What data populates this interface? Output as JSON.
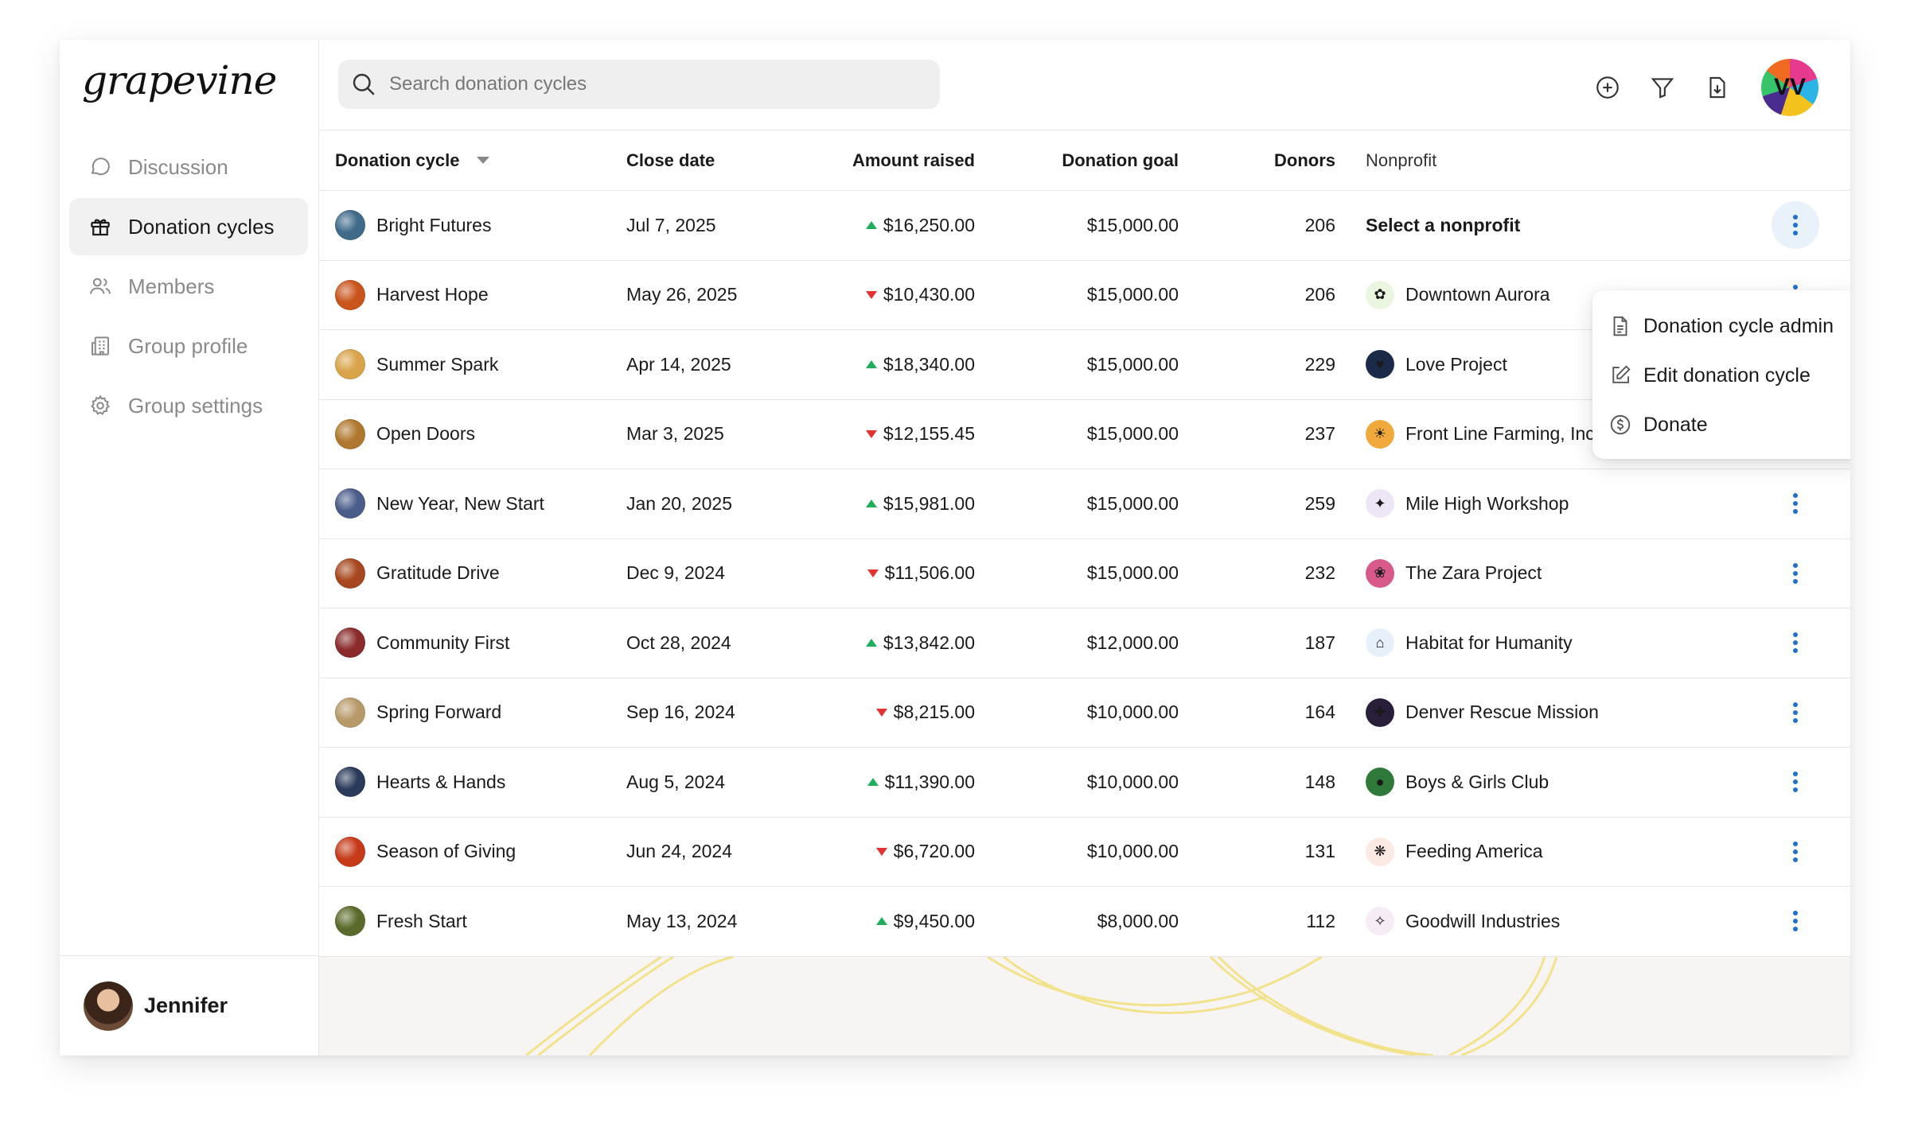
{
  "app": {
    "logo": "grapevine"
  },
  "sidebar": {
    "items": [
      {
        "label": "Discussion",
        "icon": "chat-bubble-icon",
        "active": false
      },
      {
        "label": "Donation cycles",
        "icon": "gift-icon",
        "active": true
      },
      {
        "label": "Members",
        "icon": "users-icon",
        "active": false
      },
      {
        "label": "Group profile",
        "icon": "building-icon",
        "active": false
      },
      {
        "label": "Group settings",
        "icon": "gear-icon",
        "active": false
      }
    ],
    "user": {
      "name": "Jennifer"
    }
  },
  "search": {
    "placeholder": "Search donation cycles"
  },
  "toolbar": {
    "icons": [
      "add-circle-icon",
      "filter-icon",
      "export-icon"
    ]
  },
  "table": {
    "headers": {
      "cycle": "Donation cycle",
      "close_date": "Close date",
      "amount": "Amount raised",
      "goal": "Donation goal",
      "donors": "Donors",
      "nonprofit": "Nonprofit"
    },
    "rows": [
      {
        "name": "Bright Futures",
        "date": "Jul 7, 2025",
        "trend": "up",
        "amount": "$16,250.00",
        "goal": "$15,000.00",
        "donors": "206",
        "nonprofit": "Select a nonprofit",
        "np_select": true,
        "thumb": "#3f6a8a",
        "np_color": "#ffffff",
        "np_glyph": ""
      },
      {
        "name": "Harvest Hope",
        "date": "May 26, 2025",
        "trend": "down",
        "amount": "$10,430.00",
        "goal": "$15,000.00",
        "donors": "206",
        "nonprofit": "Downtown Aurora",
        "np_select": false,
        "thumb": "#c9541c",
        "np_color": "#eaf6e0",
        "np_glyph": "✿"
      },
      {
        "name": "Summer Spark",
        "date": "Apr 14, 2025",
        "trend": "up",
        "amount": "$18,340.00",
        "goal": "$15,000.00",
        "donors": "229",
        "nonprofit": "Love Project",
        "np_select": false,
        "thumb": "#d9a34a",
        "np_color": "#1c2a4a",
        "np_glyph": "♥"
      },
      {
        "name": "Open Doors",
        "date": "Mar 3, 2025",
        "trend": "down",
        "amount": "$12,155.45",
        "goal": "$15,000.00",
        "donors": "237",
        "nonprofit": "Front Line Farming, Inc.",
        "np_select": false,
        "thumb": "#b0782e",
        "np_color": "#f2a93b",
        "np_glyph": "☀"
      },
      {
        "name": "New Year, New Start",
        "date": "Jan 20, 2025",
        "trend": "up",
        "amount": "$15,981.00",
        "goal": "$15,000.00",
        "donors": "259",
        "nonprofit": "Mile High Workshop",
        "np_select": false,
        "thumb": "#4a5c8a",
        "np_color": "#ece6f7",
        "np_glyph": "✦"
      },
      {
        "name": "Gratitude Drive",
        "date": "Dec 9, 2024",
        "trend": "down",
        "amount": "$11,506.00",
        "goal": "$15,000.00",
        "donors": "232",
        "nonprofit": "The Zara Project",
        "np_select": false,
        "thumb": "#a7471f",
        "np_color": "#d75a8a",
        "np_glyph": "❀"
      },
      {
        "name": "Community First",
        "date": "Oct 28, 2024",
        "trend": "up",
        "amount": "$13,842.00",
        "goal": "$12,000.00",
        "donors": "187",
        "nonprofit": "Habitat for Humanity",
        "np_select": false,
        "thumb": "#8a2a2a",
        "np_color": "#e7f0fa",
        "np_glyph": "⌂"
      },
      {
        "name": "Spring Forward",
        "date": "Sep 16, 2024",
        "trend": "down",
        "amount": "$8,215.00",
        "goal": "$10,000.00",
        "donors": "164",
        "nonprofit": "Denver Rescue Mission",
        "np_select": false,
        "thumb": "#b89a6a",
        "np_color": "#2a1f3a",
        "np_glyph": "✚"
      },
      {
        "name": "Hearts & Hands",
        "date": "Aug 5, 2024",
        "trend": "up",
        "amount": "$11,390.00",
        "goal": "$10,000.00",
        "donors": "148",
        "nonprofit": "Boys & Girls Club",
        "np_select": false,
        "thumb": "#2a3a5a",
        "np_color": "#2f7a3a",
        "np_glyph": "●"
      },
      {
        "name": "Season of Giving",
        "date": "Jun 24, 2024",
        "trend": "down",
        "amount": "$6,720.00",
        "goal": "$10,000.00",
        "donors": "131",
        "nonprofit": "Feeding America",
        "np_select": false,
        "thumb": "#c63a1a",
        "np_color": "#fde9e3",
        "np_glyph": "❋"
      },
      {
        "name": "Fresh Start",
        "date": "May 13, 2024",
        "trend": "up",
        "amount": "$9,450.00",
        "goal": "$8,000.00",
        "donors": "112",
        "nonprofit": "Goodwill Industries",
        "np_select": false,
        "thumb": "#5a6a2a",
        "np_color": "#f5ecf5",
        "np_glyph": "✧"
      }
    ]
  },
  "menu": {
    "items": [
      {
        "label": "Donation cycle admin",
        "icon": "document-icon"
      },
      {
        "label": "Edit donation cycle",
        "icon": "edit-icon"
      },
      {
        "label": "Donate",
        "icon": "dollar-circle-icon"
      }
    ]
  },
  "colors": {
    "trend_up": "#1fae5b",
    "trend_down": "#e23232",
    "accent": "#1f6fd6",
    "active_nav_bg": "#f1f1f1"
  }
}
